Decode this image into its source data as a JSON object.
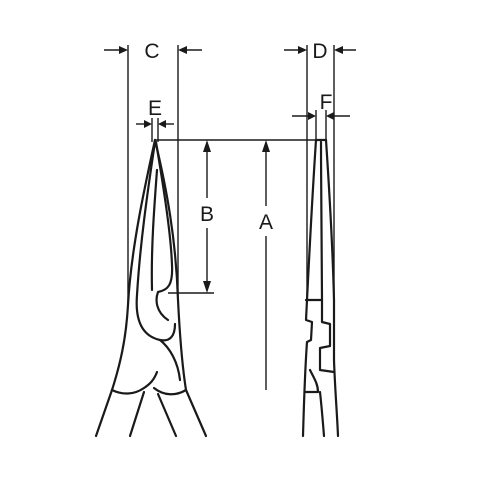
{
  "diagram": {
    "labels": {
      "c": "C",
      "d": "D",
      "e": "E",
      "f": "F",
      "b": "B",
      "a": "A"
    },
    "colors": {
      "line": "#1a1a1a",
      "background": "#ffffff"
    }
  }
}
